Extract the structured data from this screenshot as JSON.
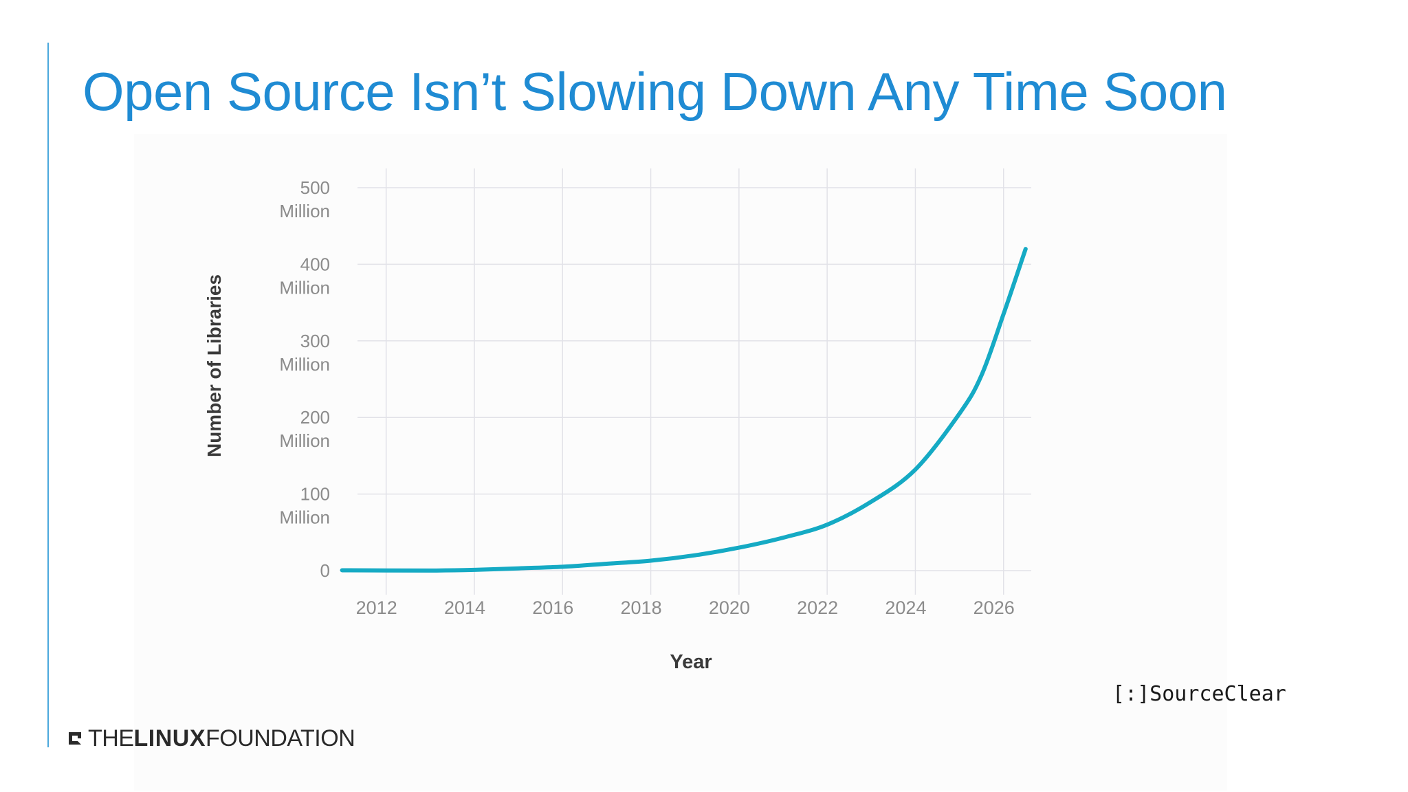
{
  "slide": {
    "title": "Open Source Isn’t Slowing Down Any Time Soon"
  },
  "footer": {
    "logo_the": "THE",
    "logo_linux": "LINUX",
    "logo_foundation": "FOUNDATION"
  },
  "source": {
    "brand": "[:]SourceClear"
  },
  "colors": {
    "title": "#1f8bd3",
    "line": "#15aac4",
    "grid": "#e2e2e8",
    "tick_text": "#8b8b8b",
    "axis_label_text": "#3a3a3a"
  },
  "chart_data": {
    "type": "line",
    "title": "",
    "xlabel": "Year",
    "ylabel": "Number of Libraries",
    "xlim": [
      2011.5,
      2026.5
    ],
    "ylim": [
      0,
      500
    ],
    "grid": true,
    "x_ticks": [
      2012,
      2014,
      2016,
      2018,
      2020,
      2022,
      2024,
      2026
    ],
    "y_ticks": [
      {
        "value": 0,
        "label": "0"
      },
      {
        "value": 100,
        "label": "100\nMillion"
      },
      {
        "value": 200,
        "label": "200\nMillion"
      },
      {
        "value": 300,
        "label": "300\nMillion"
      },
      {
        "value": 400,
        "label": "400\nMillion"
      },
      {
        "value": 500,
        "label": "500\nMillion"
      }
    ],
    "series": [
      {
        "x": [
          2011.0,
          2012.0,
          2013.0,
          2014.0,
          2015.0,
          2016.0,
          2017.0,
          2018.0,
          2019.0,
          2020.0,
          2021.0,
          2022.0,
          2023.0,
          2024.0,
          2025.0,
          2025.5,
          2026.0,
          2026.5
        ],
        "values": [
          0.5,
          0.3,
          0.1,
          1,
          3,
          5,
          9,
          13,
          20,
          30,
          43,
          60,
          90,
          132,
          205,
          255,
          335,
          420
        ]
      }
    ]
  }
}
